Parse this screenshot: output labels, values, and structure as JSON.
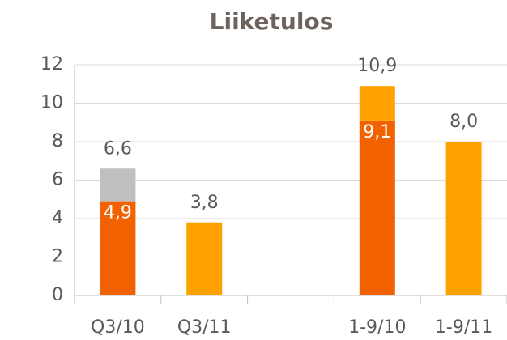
{
  "chart_data": {
    "type": "bar",
    "stacked": true,
    "title": "Liiketulos",
    "categories": [
      "Q3/10",
      "Q3/11",
      null,
      "1-9/10",
      "1-9/11"
    ],
    "series": [
      {
        "color": "#f26200",
        "values": [
          4.9,
          null,
          null,
          9.1,
          null
        ],
        "value_labels": [
          "4,9",
          null,
          null,
          "9,1",
          null
        ]
      },
      {
        "color": "#bfbfbf",
        "values": [
          1.7,
          null,
          null,
          null,
          null
        ]
      },
      {
        "color": "#ffa200",
        "values": [
          null,
          3.8,
          null,
          1.8,
          8.0
        ]
      }
    ],
    "totals": {
      "values": [
        6.6,
        3.8,
        null,
        10.9,
        8.0
      ],
      "value_labels": [
        "6,6",
        "3,8",
        null,
        "10,9",
        "8,0"
      ]
    },
    "ylim": [
      0,
      12
    ],
    "yticks": [
      0,
      2,
      4,
      6,
      8,
      10,
      12
    ],
    "grid": true
  }
}
